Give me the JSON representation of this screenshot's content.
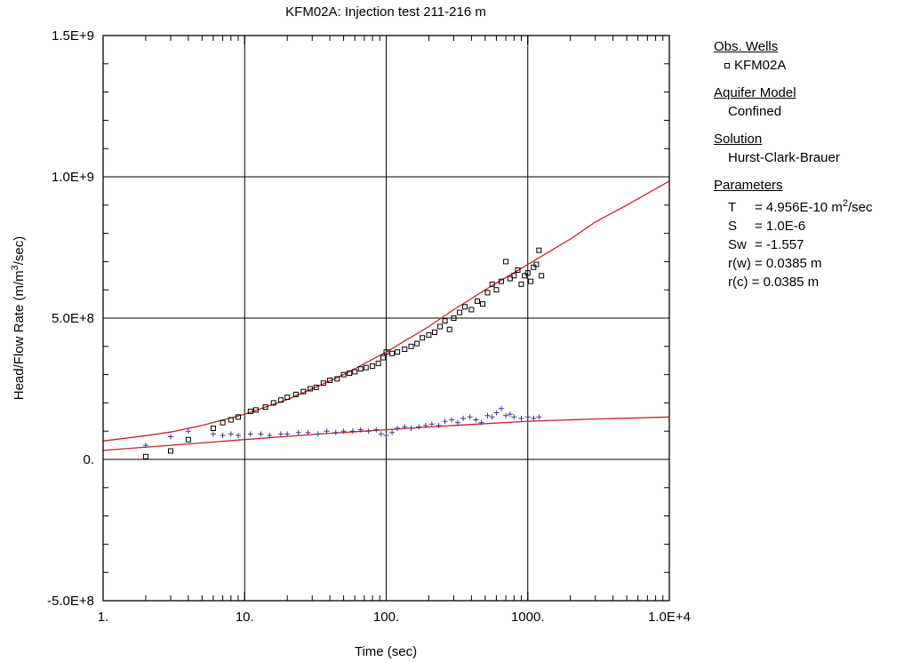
{
  "chart_data": {
    "type": "scatter",
    "title": "KFM02A: Injection test 211-216 m",
    "xlabel": "Time (sec)",
    "ylabel_main": "Head/Flow Rate (m/m",
    "ylabel_sup": "3",
    "ylabel_tail": "/sec)",
    "xscale": "log",
    "xlim": [
      1,
      10000
    ],
    "ylim": [
      -500000000,
      1500000000
    ],
    "grid": true,
    "x_ticks": [
      {
        "value": 1,
        "label": "1."
      },
      {
        "value": 10,
        "label": "10."
      },
      {
        "value": 100,
        "label": "100."
      },
      {
        "value": 1000,
        "label": "1000."
      },
      {
        "value": 10000,
        "label": "1.0E+4"
      }
    ],
    "y_ticks": [
      {
        "value": -500000000,
        "label": "-5.0E+8"
      },
      {
        "value": 0,
        "label": "0."
      },
      {
        "value": 500000000,
        "label": "5.0E+8"
      },
      {
        "value": 1000000000,
        "label": "1.0E+9"
      },
      {
        "value": 1500000000,
        "label": "1.5E+9"
      }
    ],
    "series": [
      {
        "marker": "square",
        "color": "#000000",
        "points": [
          [
            2,
            10000000.0
          ],
          [
            3,
            30000000.0
          ],
          [
            4,
            70000000.0
          ],
          [
            6,
            110000000.0
          ],
          [
            7,
            130000000.0
          ],
          [
            8,
            140000000.0
          ],
          [
            9,
            150000000.0
          ],
          [
            11,
            170000000.0
          ],
          [
            12,
            175000000.0
          ],
          [
            14,
            185000000.0
          ],
          [
            16,
            200000000.0
          ],
          [
            18,
            210000000.0
          ],
          [
            20,
            220000000.0
          ],
          [
            23,
            230000000.0
          ],
          [
            26,
            240000000.0
          ],
          [
            29,
            250000000.0
          ],
          [
            32,
            255000000.0
          ],
          [
            36,
            270000000.0
          ],
          [
            40,
            280000000.0
          ],
          [
            45,
            285000000.0
          ],
          [
            50,
            300000000.0
          ],
          [
            55,
            305000000.0
          ],
          [
            60,
            310000000.0
          ],
          [
            66,
            320000000.0
          ],
          [
            72,
            325000000.0
          ],
          [
            80,
            330000000.0
          ],
          [
            88,
            340000000.0
          ],
          [
            95,
            360000000.0
          ],
          [
            100,
            380000000.0
          ],
          [
            110,
            375000000.0
          ],
          [
            120,
            380000000.0
          ],
          [
            135,
            390000000.0
          ],
          [
            150,
            400000000.0
          ],
          [
            165,
            410000000.0
          ],
          [
            180,
            430000000.0
          ],
          [
            200,
            440000000.0
          ],
          [
            220,
            450000000.0
          ],
          [
            240,
            470000000.0
          ],
          [
            260,
            490000000.0
          ],
          [
            280,
            460000000.0
          ],
          [
            300,
            500000000.0
          ],
          [
            330,
            520000000.0
          ],
          [
            360,
            540000000.0
          ],
          [
            400,
            530000000.0
          ],
          [
            440,
            560000000.0
          ],
          [
            480,
            550000000.0
          ],
          [
            520,
            590000000.0
          ],
          [
            560,
            620000000.0
          ],
          [
            600,
            600000000.0
          ],
          [
            650,
            630000000.0
          ],
          [
            700,
            700000000.0
          ],
          [
            750,
            640000000.0
          ],
          [
            800,
            650000000.0
          ],
          [
            850,
            670000000.0
          ],
          [
            900,
            620000000.0
          ],
          [
            950,
            650000000.0
          ],
          [
            1000,
            660000000.0
          ],
          [
            1050,
            630000000.0
          ],
          [
            1100,
            680000000.0
          ],
          [
            1150,
            690000000.0
          ],
          [
            1200,
            740000000.0
          ],
          [
            1250,
            650000000.0
          ]
        ]
      },
      {
        "marker": "plus",
        "color": "#3a3a8c",
        "points": [
          [
            2,
            50000000.0
          ],
          [
            3,
            80000000.0
          ],
          [
            4,
            100000000.0
          ],
          [
            6,
            90000000.0
          ],
          [
            7,
            85000000.0
          ],
          [
            8,
            90000000.0
          ],
          [
            9,
            85000000.0
          ],
          [
            11,
            90000000.0
          ],
          [
            13,
            90000000.0
          ],
          [
            15,
            85000000.0
          ],
          [
            18,
            90000000.0
          ],
          [
            20,
            90000000.0
          ],
          [
            24,
            95000000.0
          ],
          [
            28,
            95000000.0
          ],
          [
            33,
            90000000.0
          ],
          [
            38,
            100000000.0
          ],
          [
            44,
            95000000.0
          ],
          [
            50,
            100000000.0
          ],
          [
            58,
            100000000.0
          ],
          [
            66,
            105000000.0
          ],
          [
            75,
            100000000.0
          ],
          [
            85,
            105000000.0
          ],
          [
            92,
            90000000.0
          ],
          [
            100,
            85000000.0
          ],
          [
            110,
            95000000.0
          ],
          [
            120,
            110000000.0
          ],
          [
            135,
            115000000.0
          ],
          [
            150,
            110000000.0
          ],
          [
            170,
            115000000.0
          ],
          [
            190,
            120000000.0
          ],
          [
            210,
            125000000.0
          ],
          [
            235,
            120000000.0
          ],
          [
            260,
            135000000.0
          ],
          [
            290,
            140000000.0
          ],
          [
            320,
            130000000.0
          ],
          [
            350,
            145000000.0
          ],
          [
            390,
            150000000.0
          ],
          [
            430,
            140000000.0
          ],
          [
            470,
            130000000.0
          ],
          [
            520,
            155000000.0
          ],
          [
            560,
            150000000.0
          ],
          [
            600,
            165000000.0
          ],
          [
            650,
            180000000.0
          ],
          [
            700,
            155000000.0
          ],
          [
            750,
            160000000.0
          ],
          [
            800,
            150000000.0
          ],
          [
            900,
            145000000.0
          ],
          [
            1000,
            150000000.0
          ],
          [
            1100,
            145000000.0
          ],
          [
            1200,
            150000000.0
          ]
        ]
      }
    ],
    "fits": [
      {
        "color": "#cc1f2a",
        "x": [
          1,
          2,
          3,
          5,
          10,
          20,
          30,
          50,
          100,
          200,
          300,
          500,
          1000,
          2000,
          3000,
          5000,
          10000
        ],
        "y": [
          65000000.0,
          84000000.0,
          97000000.0,
          120000000.0,
          160000000.0,
          212000000.0,
          250000000.0,
          300000000.0,
          380000000.0,
          470000000.0,
          530000000.0,
          600000000.0,
          690000000.0,
          780000000.0,
          840000000.0,
          900000000.0,
          985000000.0
        ]
      },
      {
        "color": "#cc1f2a",
        "x": [
          1,
          3,
          10,
          30,
          100,
          300,
          1000,
          3000,
          10000
        ],
        "y": [
          32000000.0,
          50000000.0,
          70000000.0,
          88000000.0,
          105000000.0,
          120000000.0,
          135000000.0,
          143000000.0,
          150000000.0
        ]
      }
    ]
  },
  "legend": {
    "obs_wells_heading": "Obs. Wells",
    "well": "KFM02A",
    "aquifer_heading": "Aquifer Model",
    "aquifer": "Confined",
    "solution_heading": "Solution",
    "solution": "Hurst-Clark-Brauer",
    "parameters_heading": "Parameters",
    "params": {
      "t_name": "T",
      "t_value": "= 4.956E-10 m",
      "t_sup": "2",
      "t_unit": "/sec",
      "s_name": "S",
      "s_value": "= 1.0E-6",
      "sw_name": "Sw",
      "sw_value": "= -1.557",
      "rw_text": "r(w) = 0.0385 m",
      "rc_text": "r(c) = 0.0385 m"
    }
  }
}
